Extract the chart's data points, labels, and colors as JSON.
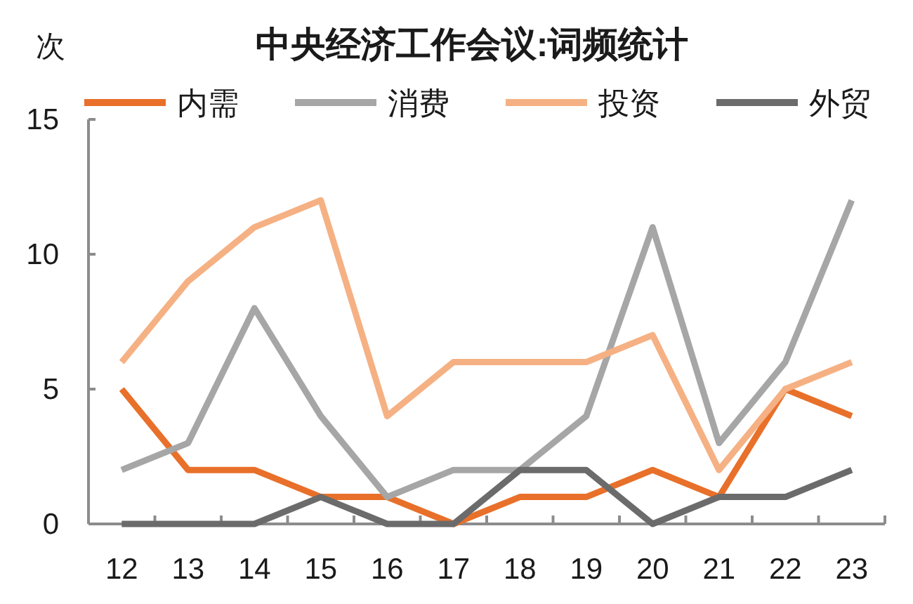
{
  "chart_data": {
    "type": "line",
    "title": "中央经济工作会议:词频统计",
    "ylabel": "次",
    "categories": [
      "12",
      "13",
      "14",
      "15",
      "16",
      "17",
      "18",
      "19",
      "20",
      "21",
      "22",
      "23"
    ],
    "series": [
      {
        "name": "内需",
        "color": "#e8702a",
        "values": [
          5,
          2,
          2,
          1,
          1,
          0,
          1,
          1,
          2,
          1,
          5,
          4
        ]
      },
      {
        "name": "消费",
        "color": "#a6a6a6",
        "values": [
          2,
          3,
          8,
          4,
          1,
          2,
          2,
          4,
          11,
          3,
          6,
          12
        ]
      },
      {
        "name": "投资",
        "color": "#f5b183",
        "values": [
          6,
          9,
          11,
          12,
          4,
          6,
          6,
          6,
          7,
          2,
          5,
          6
        ]
      },
      {
        "name": "外贸",
        "color": "#6b6b6b",
        "values": [
          0,
          0,
          0,
          1,
          0,
          0,
          2,
          2,
          0,
          1,
          1,
          2
        ]
      }
    ],
    "ylim": [
      0,
      15
    ],
    "yticks": [
      0,
      5,
      10,
      15
    ],
    "legend": "top",
    "line_style": "solid"
  }
}
